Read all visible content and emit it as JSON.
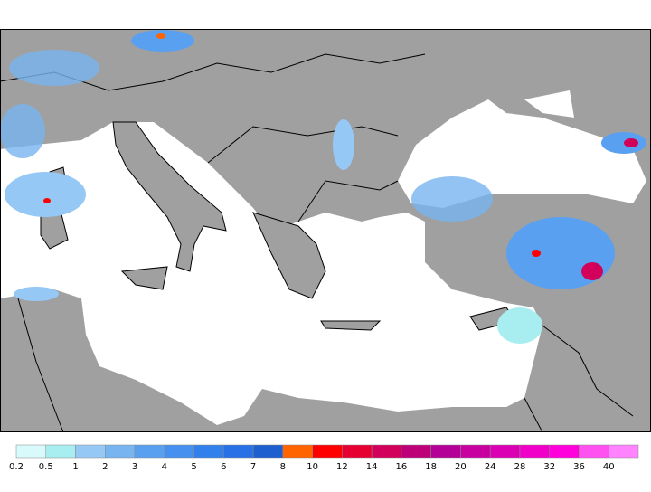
{
  "colorbar": {
    "labels": [
      "0.2",
      "0.5",
      "1",
      "2",
      "3",
      "4",
      "5",
      "6",
      "7",
      "8",
      "10",
      "12",
      "14",
      "16",
      "18",
      "20",
      "24",
      "28",
      "32",
      "36",
      "40"
    ],
    "colors": [
      "#d8fafa",
      "#a8eef0",
      "#96c8f5",
      "#78b4f0",
      "#5aa0f0",
      "#4690f0",
      "#3280ec",
      "#2870e6",
      "#1e5fd0",
      "#ff6400",
      "#ff0000",
      "#e60032",
      "#d2005a",
      "#be0078",
      "#b40096",
      "#c800a0",
      "#dc00b4",
      "#f000c8",
      "#ff00dc",
      "#ff50f0",
      "#ff82ff"
    ]
  }
}
